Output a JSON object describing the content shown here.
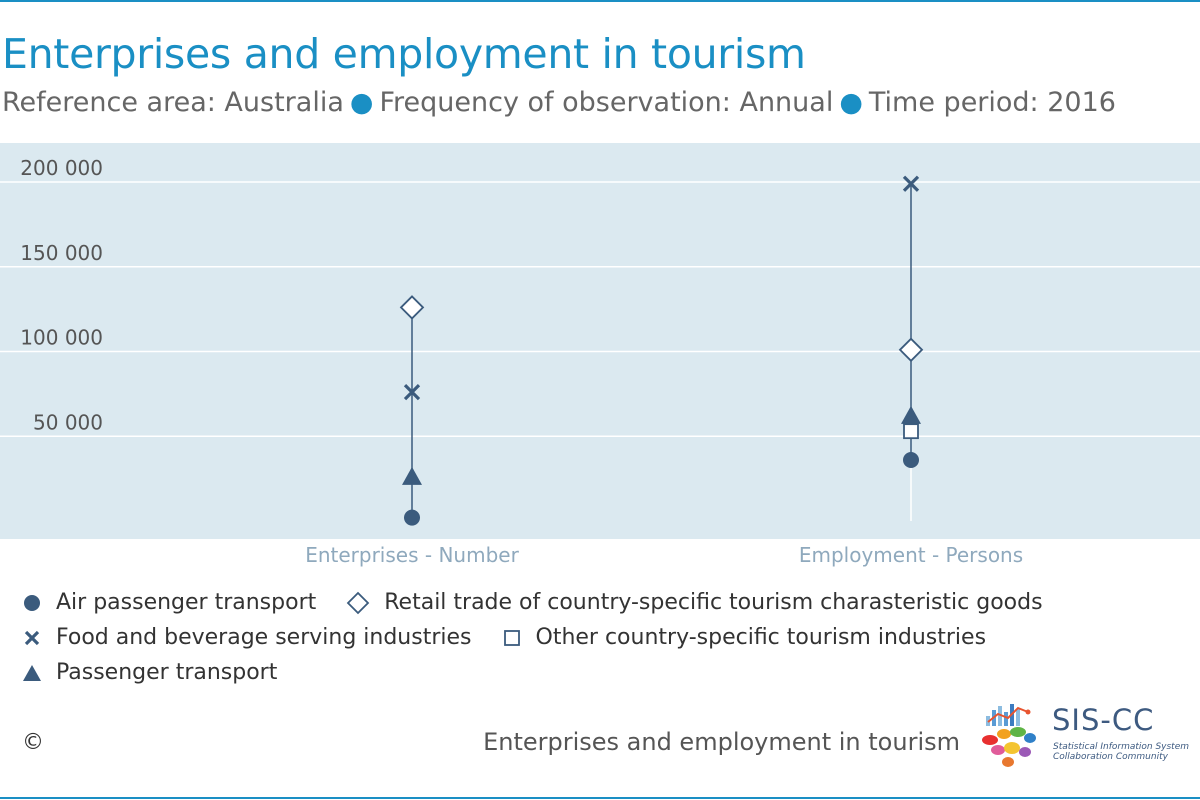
{
  "header": {
    "title": "Enterprises and employment in tourism",
    "subtitle_parts": [
      "Reference area: Australia",
      "Frequency of observation: Annual",
      "Time period: 2016"
    ]
  },
  "colors": {
    "accent": "#1a8fc4",
    "series": "#3b5b7d",
    "plot_bg": "#dbe9f0"
  },
  "chart_data": {
    "type": "scatter",
    "title": "Enterprises and employment in tourism",
    "categories": [
      "Enterprises - Number",
      "Employment - Persons"
    ],
    "ylim": [
      0,
      210000
    ],
    "y_ticks": [
      50000,
      100000,
      150000,
      200000
    ],
    "y_tick_labels": [
      "50 000",
      "100 000",
      "150 000",
      "200 000"
    ],
    "grid": true,
    "legend_position": "bottom",
    "series": [
      {
        "name": "Air passenger transport",
        "symbol": "circle",
        "values": [
          2000,
          36000
        ]
      },
      {
        "name": "Retail trade of country-specific tourism charasteristic goods",
        "symbol": "diamond-open",
        "values": [
          126000,
          101000
        ]
      },
      {
        "name": "Food and beverage serving industries",
        "symbol": "cross",
        "values": [
          76000,
          199000
        ]
      },
      {
        "name": "Other country-specific tourism industries",
        "symbol": "square-open",
        "values": [
          null,
          53000
        ]
      },
      {
        "name": "Passenger transport",
        "symbol": "triangle",
        "values": [
          26000,
          62000
        ]
      }
    ]
  },
  "footer": {
    "copyright": "©",
    "source_title": "Enterprises and employment in tourism",
    "logo_name": "SIS-CC",
    "logo_caption_1": "Statistical Information System",
    "logo_caption_2": "Collaboration Community"
  }
}
